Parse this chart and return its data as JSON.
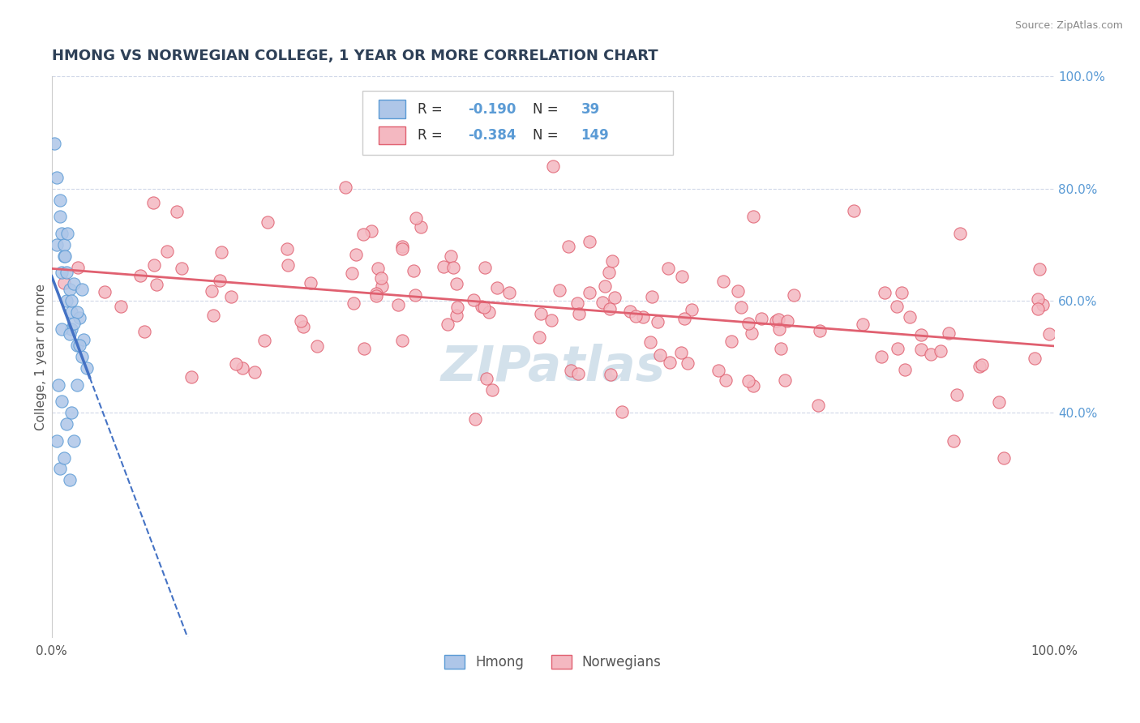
{
  "title": "HMONG VS NORWEGIAN COLLEGE, 1 YEAR OR MORE CORRELATION CHART",
  "source_text": "Source: ZipAtlas.com",
  "ylabel": "College, 1 year or more",
  "legend_entry1": "Hmong",
  "legend_entry2": "Norwegians",
  "R1": -0.19,
  "N1": 39,
  "R2": -0.384,
  "N2": 149,
  "xlim": [
    0.0,
    100.0
  ],
  "ylim": [
    0.0,
    100.0
  ],
  "hmong_color": "#aec6e8",
  "hmong_edge_color": "#5b9bd5",
  "norwegian_color": "#f4b8c1",
  "norwegian_edge_color": "#e06070",
  "trend_hmong_color": "#4472c4",
  "trend_norwegian_color": "#e06070",
  "background_color": "#ffffff",
  "watermark_color": "#ccdce8",
  "grid_color": "#d0d8e8",
  "title_color": "#2e4057"
}
